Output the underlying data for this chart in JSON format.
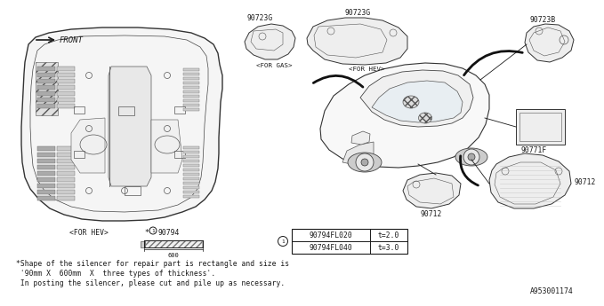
{
  "bg_color": "#ffffff",
  "line_color": "#1a1a1a",
  "labels": {
    "front": "FRONT",
    "for_hev_bottom": "<FOR HEV>",
    "for_hev_top": "<FOR HEV>",
    "for_gas": "<FOR GAS>",
    "part_90723G_left": "90723G",
    "part_90723G_right": "90723G",
    "part_90723B": "90723B",
    "part_90771F": "90771F",
    "part_90712_left": "90712",
    "part_90712_right": "90712",
    "part_90794_star": "*",
    "part_90794_num": "90794",
    "table_row1_part": "90794FL020",
    "table_row1_val": "t=2.0",
    "table_row2_part": "90794FL040",
    "table_row2_val": "t=3.0",
    "note_line1": "*Shape of the silencer for repair part is rectangle and size is",
    "note_line2": " '90mm X  600mm  X  three types of thickness'.",
    "note_line3": " In posting the silencer, please cut and pile up as necessary.",
    "diagram_id": "A953001174"
  },
  "fs_tiny": 5.0,
  "fs_small": 5.8,
  "fs_label": 6.5
}
